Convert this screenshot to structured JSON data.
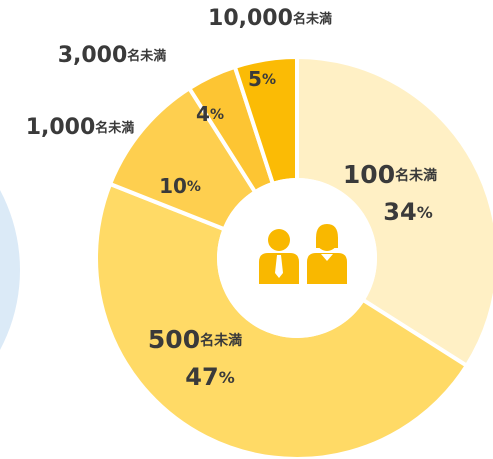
{
  "chart_data": {
    "type": "pie",
    "categories": [
      "100名未満",
      "500名未満",
      "1,000名未満",
      "3,000名未満",
      "10,000名未満"
    ],
    "values": [
      34,
      47,
      10,
      4,
      5
    ],
    "value_labels": [
      "34%",
      "47%",
      "10%",
      "4%",
      "5%"
    ],
    "colors": [
      "#fff0c5",
      "#ffda66",
      "#fecf4f",
      "#fdc533",
      "#fbbb05"
    ]
  }
}
